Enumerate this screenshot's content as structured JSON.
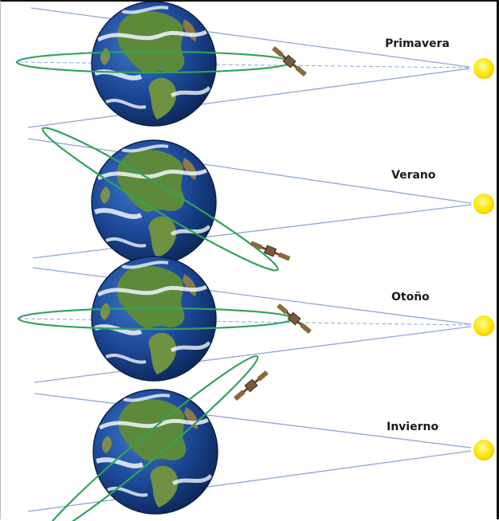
{
  "seasons": [
    {
      "label": "Primavera"
    },
    {
      "label": "Verano"
    },
    {
      "label": "Otoño"
    },
    {
      "label": "Invierno"
    }
  ],
  "colors": {
    "orbit": "#2fa35c",
    "light_cone": "#8fa7d4",
    "axis_dashed": "#8fa7d4",
    "sun": "#ffe600",
    "sun_edge": "#f5c400",
    "ocean": "#1d4a9a",
    "land": "#5d8a3a",
    "cloud": "#f2f5fb",
    "satellite": "#6b4a2a"
  },
  "icons": {
    "earth": "earth-globe-icon",
    "sun": "sun-icon",
    "satellite": "satellite-icon"
  }
}
